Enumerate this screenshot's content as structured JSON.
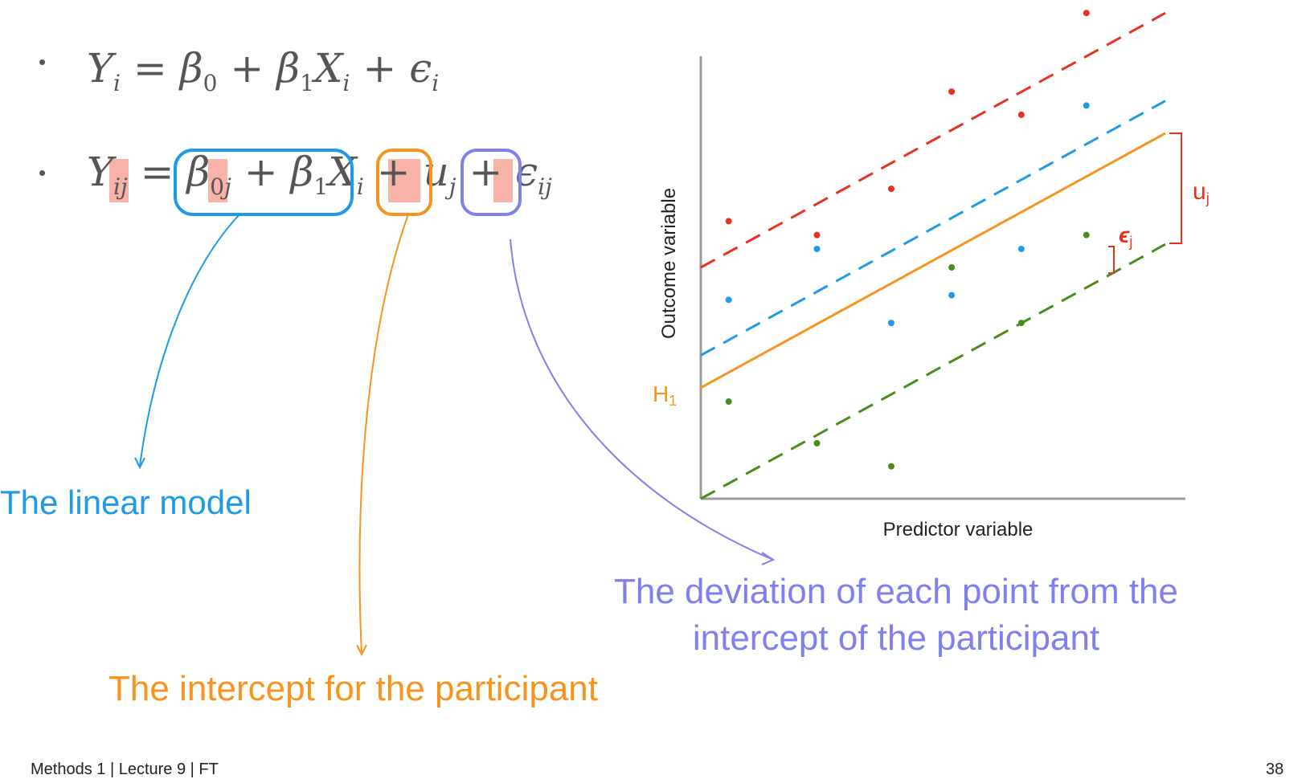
{
  "equations": {
    "bullet": "•",
    "eq1": {
      "Y": "Y",
      "i": "i",
      "eq": "=",
      "b0": "β",
      "zero": "0",
      "plus": "+",
      "b1": "β",
      "one": "1",
      "X": "X",
      "eps": "ϵ"
    },
    "eq2": {
      "Y": "Y",
      "ij": "ij",
      "eq": "=",
      "b0": "β",
      "zero": "0",
      "j": "j",
      "plus": "+",
      "b1": "β",
      "one": "1",
      "X": "X",
      "i": "i",
      "u": "u",
      "eps": "ϵ"
    }
  },
  "annotations": {
    "linear_model": "The linear model",
    "intercept": "The intercept for the participant",
    "deviation_line1": "The deviation of each point from the",
    "deviation_line2": "intercept of the participant"
  },
  "chart": {
    "xlabel": "Predictor variable",
    "ylabel": "Outcome variable",
    "h1_label": "H",
    "h1_sub": "1",
    "uj_label": "u",
    "uj_sub": "j",
    "ej_label": "ϵ",
    "ej_sub": "j"
  },
  "footer": {
    "left": "Methods 1 | Lecture 9 | FT",
    "page": "38"
  },
  "colors": {
    "blue": "#1e9be6",
    "orange": "#f7941d",
    "purple": "#7f7ff0",
    "red": "#e8321e",
    "green": "#4a8c1c",
    "highlight": "#f7b3a8",
    "axis": "#9a9a9a",
    "text": "#555555"
  },
  "chart_data": {
    "type": "scatter",
    "x_range": [
      0,
      10
    ],
    "y_range": [
      0,
      10
    ],
    "regression_lines": [
      {
        "color": "orange",
        "style": "solid",
        "intercept": 2.4,
        "slope": 0.55
      },
      {
        "color": "blue",
        "style": "dashed",
        "intercept": 3.1,
        "slope": 0.55
      },
      {
        "color": "red",
        "style": "dashed",
        "intercept": 5.0,
        "slope": 0.55
      },
      {
        "color": "green",
        "style": "dashed",
        "intercept": 0.0,
        "slope": 0.55
      }
    ],
    "series": [
      {
        "color": "red",
        "points": [
          [
            0.6,
            6.0
          ],
          [
            2.5,
            5.7
          ],
          [
            4.1,
            6.7
          ],
          [
            5.4,
            8.8
          ],
          [
            6.9,
            8.3
          ],
          [
            8.3,
            10.5
          ]
        ]
      },
      {
        "color": "blue",
        "points": [
          [
            0.6,
            4.3
          ],
          [
            2.5,
            5.4
          ],
          [
            4.1,
            3.8
          ],
          [
            5.4,
            4.4
          ],
          [
            6.9,
            5.4
          ],
          [
            8.3,
            8.5
          ]
        ]
      },
      {
        "color": "green",
        "points": [
          [
            0.6,
            2.1
          ],
          [
            2.5,
            1.2
          ],
          [
            4.1,
            0.7
          ],
          [
            5.4,
            5.0
          ],
          [
            6.9,
            3.8
          ],
          [
            8.3,
            5.7
          ]
        ]
      }
    ]
  }
}
